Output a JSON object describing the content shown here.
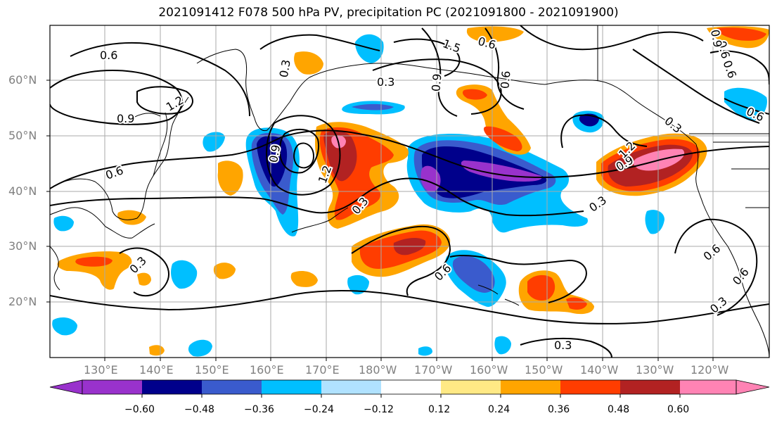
{
  "title": "2021091412 F078 500 hPa PV, precipitation PC (2021091800 - 2021091900)",
  "latitude_labels": [
    "60°N",
    "50°N",
    "40°N",
    "30°N",
    "20°N"
  ],
  "longitude_labels": [
    "130°E",
    "140°E",
    "150°E",
    "160°E",
    "170°E",
    "180°W",
    "170°W",
    "160°W",
    "150°W",
    "140°W",
    "130°W",
    "120°W"
  ],
  "colorbar": {
    "tick_labels": [
      "−0.60",
      "−0.48",
      "−0.36",
      "−0.24",
      "−0.12",
      "0.12",
      "0.24",
      "0.36",
      "0.48",
      "0.60"
    ],
    "colors": [
      "#9932CC",
      "#00008B",
      "#3A5BCD",
      "#00BFFF",
      "#B0E2FF",
      "#FFFFFF",
      "#FFE985",
      "#FFA500",
      "#FF3D00",
      "#B22222",
      "#FF83B4"
    ]
  },
  "contour_labels": [
    "0.6",
    "0.3",
    "0.9",
    "1.2",
    "0.6",
    "0.3",
    "0.9",
    "1.2",
    "0.3",
    "0.6",
    "0.9",
    "0.6",
    "0.9",
    "0.3",
    "0.6",
    "0.3",
    "0.6",
    "0.6",
    "0.6",
    "0.3",
    "0.3",
    "0.6",
    "1.5",
    "1.2",
    "0.6",
    "0.3",
    "0.9"
  ]
}
